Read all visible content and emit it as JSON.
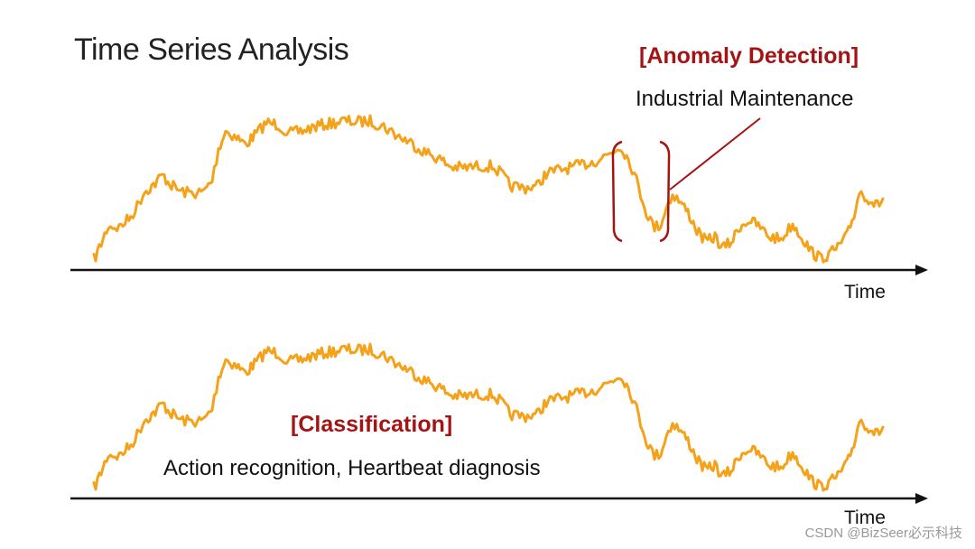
{
  "title": "Time Series Analysis",
  "top_panel": {
    "task_label": "[Anomaly Detection]",
    "example": "Industrial Maintenance",
    "axis_label": "Time"
  },
  "bottom_panel": {
    "task_label": "[Classification]",
    "example": "Action recognition, Heartbeat diagnosis",
    "axis_label": "Time"
  },
  "watermark": "CSDN @BizSeer必示科技",
  "colors": {
    "series": "#F5A21B",
    "accent": "#A31515",
    "axis": "#111111",
    "text": "#222222"
  }
}
